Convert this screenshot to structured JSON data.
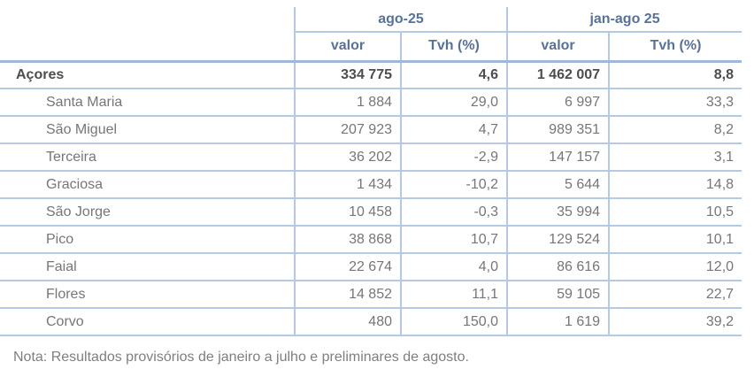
{
  "table": {
    "group_headers": [
      {
        "label": "ago-25"
      },
      {
        "label": "jan-ago 25"
      }
    ],
    "sub_headers": {
      "valor_1": "valor",
      "tvh_1": "Tvh (%)",
      "valor_2": "valor",
      "tvh_2": "Tvh (%)"
    },
    "total_row": {
      "name": "Açores",
      "values": [
        "334 775",
        "4,6",
        "1 462 007",
        "8,8"
      ]
    },
    "rows": [
      {
        "name": "Santa Maria",
        "values": [
          "1 884",
          "29,0",
          "6 997",
          "33,3"
        ]
      },
      {
        "name": "São Miguel",
        "values": [
          "207 923",
          "4,7",
          "989 351",
          "8,2"
        ]
      },
      {
        "name": "Terceira",
        "values": [
          "36 202",
          "-2,9",
          "147 157",
          "3,1"
        ]
      },
      {
        "name": "Graciosa",
        "values": [
          "1 434",
          "-10,2",
          "5 644",
          "14,8"
        ]
      },
      {
        "name": "São Jorge",
        "values": [
          "10 458",
          "-0,3",
          "35 994",
          "10,5"
        ]
      },
      {
        "name": "Pico",
        "values": [
          "38 868",
          "10,7",
          "129 524",
          "10,1"
        ]
      },
      {
        "name": "Faial",
        "values": [
          "22 674",
          "4,0",
          "86 616",
          "12,0"
        ]
      },
      {
        "name": "Flores",
        "values": [
          "14 852",
          "11,1",
          "59 105",
          "22,7"
        ]
      },
      {
        "name": "Corvo",
        "values": [
          "480",
          "150,0",
          "1 619",
          "39,2"
        ]
      }
    ]
  },
  "note": "Nota: Resultados provisórios de janeiro a julho e preliminares de agosto.",
  "chart_data": {
    "type": "table",
    "title": "",
    "column_groups": [
      "ago-25",
      "jan-ago 25"
    ],
    "columns": [
      "valor (ago-25)",
      "Tvh % (ago-25)",
      "valor (jan-ago 25)",
      "Tvh % (jan-ago 25)"
    ],
    "rows": [
      {
        "region": "Açores",
        "valor_ago25": 334775,
        "tvh_ago25": 4.6,
        "valor_janago25": 1462007,
        "tvh_janago25": 8.8
      },
      {
        "region": "Santa Maria",
        "valor_ago25": 1884,
        "tvh_ago25": 29.0,
        "valor_janago25": 6997,
        "tvh_janago25": 33.3
      },
      {
        "region": "São Miguel",
        "valor_ago25": 207923,
        "tvh_ago25": 4.7,
        "valor_janago25": 989351,
        "tvh_janago25": 8.2
      },
      {
        "region": "Terceira",
        "valor_ago25": 36202,
        "tvh_ago25": -2.9,
        "valor_janago25": 147157,
        "tvh_janago25": 3.1
      },
      {
        "region": "Graciosa",
        "valor_ago25": 1434,
        "tvh_ago25": -10.2,
        "valor_janago25": 5644,
        "tvh_janago25": 14.8
      },
      {
        "region": "São Jorge",
        "valor_ago25": 10458,
        "tvh_ago25": -0.3,
        "valor_janago25": 35994,
        "tvh_janago25": 10.5
      },
      {
        "region": "Pico",
        "valor_ago25": 38868,
        "tvh_ago25": 10.7,
        "valor_janago25": 129524,
        "tvh_janago25": 10.1
      },
      {
        "region": "Faial",
        "valor_ago25": 22674,
        "tvh_ago25": 4.0,
        "valor_janago25": 86616,
        "tvh_janago25": 12.0
      },
      {
        "region": "Flores",
        "valor_ago25": 14852,
        "tvh_ago25": 11.1,
        "valor_janago25": 59105,
        "tvh_janago25": 22.7
      },
      {
        "region": "Corvo",
        "valor_ago25": 480,
        "tvh_ago25": 150.0,
        "valor_janago25": 1619,
        "tvh_janago25": 39.2
      }
    ]
  },
  "colors": {
    "grid_line": "#B6C9E4",
    "header_separator": "#9FB8D8",
    "header_text": "#587197",
    "total_text": "#4D4D4D",
    "body_text": "#767676",
    "note_text": "#7F7F7F",
    "background": "#FFFFFF"
  }
}
